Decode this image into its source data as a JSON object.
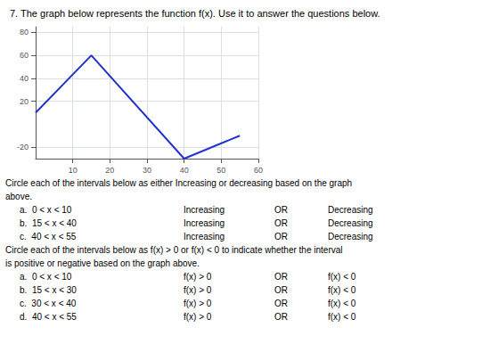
{
  "chart_data": {
    "type": "line",
    "title": "7. The graph below represents the function f(x). Use it to answer the questions below.",
    "x": [
      0,
      15,
      40,
      55
    ],
    "values": [
      10,
      60,
      -30,
      -10
    ],
    "color": "#2233cc",
    "xlim": [
      0,
      60
    ],
    "ylim": [
      -30,
      85
    ],
    "xticks": [
      10,
      20,
      30,
      40,
      50,
      60
    ],
    "yticks": [
      -20,
      20,
      40,
      60,
      80
    ],
    "grid": true,
    "annotations": [
      [
        "Circle each of the intervals below as either Increasing or decreasing based on the graph"
      ],
      [
        "above."
      ],
      [
        "a.  0 < x < 10",
        "Increasing",
        "OR",
        "Decreasing"
      ],
      [
        "b.  15 < x < 40",
        "Increasing",
        "OR",
        "Decreasing"
      ],
      [
        "c.  40 < x < 55",
        "Increasing",
        "OR",
        "Decreasing"
      ],
      [
        "Circle each of the intervals below as f(x) > 0 or f(x) < 0 to indicate whether the interval"
      ],
      [
        "is positive or negative based on the graph above."
      ],
      [
        "a.  0 < x < 10",
        "f(x) > 0",
        "OR",
        "f(x) < 0"
      ],
      [
        "b.  15 < x < 30",
        "f(x) > 0",
        "OR",
        "f(x) < 0"
      ],
      [
        "c.  30 < x < 40",
        "f(x) > 0",
        "OR",
        "f(x) < 0"
      ],
      [
        "d.  40 < x < 55",
        "f(x) > 0",
        "OR",
        "f(x) < 0"
      ]
    ]
  }
}
